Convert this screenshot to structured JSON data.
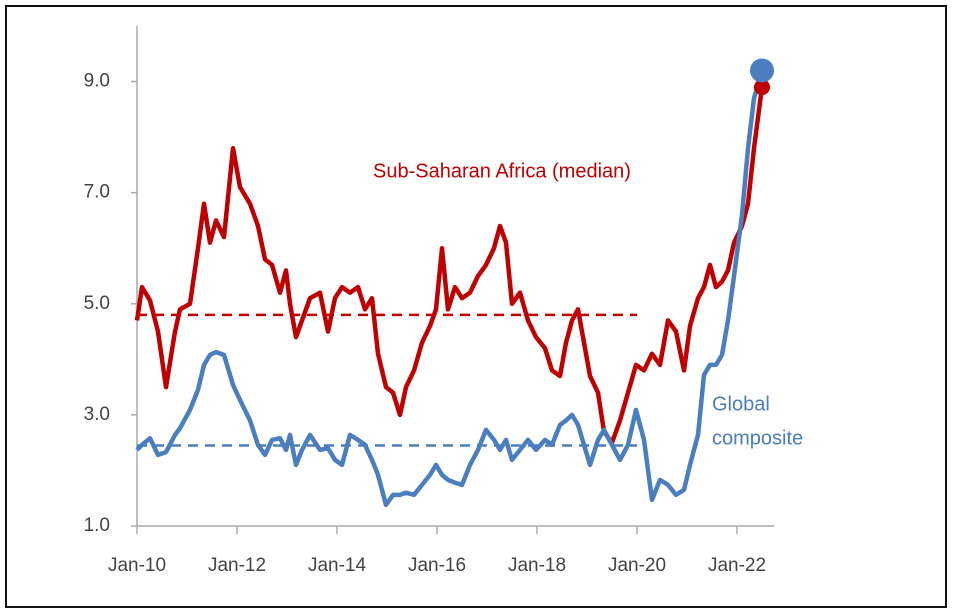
{
  "chart_data": {
    "type": "line",
    "xlim": [
      2010,
      2022.75
    ],
    "xticks": [
      {
        "value": 2010,
        "label": "Jan-10"
      },
      {
        "value": 2012,
        "label": "Jan-12"
      },
      {
        "value": 2014,
        "label": "Jan-14"
      },
      {
        "value": 2016,
        "label": "Jan-16"
      },
      {
        "value": 2018,
        "label": "Jan-18"
      },
      {
        "value": 2020,
        "label": "Jan-20"
      },
      {
        "value": 2022,
        "label": "Jan-22"
      }
    ],
    "ylim": [
      1,
      10
    ],
    "yticks": [
      {
        "value": 1,
        "label": "1.0"
      },
      {
        "value": 3,
        "label": "3.0"
      },
      {
        "value": 5,
        "label": "5.0"
      },
      {
        "value": 7,
        "label": "7.0"
      },
      {
        "value": 9,
        "label": "9.0"
      }
    ],
    "x": [
      2010.0,
      2010.1,
      2010.26,
      2010.42,
      2010.58,
      2010.76,
      2010.86,
      2011.06,
      2011.22,
      2011.34,
      2011.46,
      2011.58,
      2011.74,
      2011.92,
      2012.06,
      2012.26,
      2012.42,
      2012.56,
      2012.7,
      2012.86,
      2012.98,
      2013.06,
      2013.18,
      2013.3,
      2013.46,
      2013.66,
      2013.82,
      2013.96,
      2014.1,
      2014.26,
      2014.42,
      2014.56,
      2014.7,
      2014.82,
      2014.98,
      2015.12,
      2015.26,
      2015.38,
      2015.54,
      2015.7,
      2015.86,
      2015.98,
      2016.1,
      2016.22,
      2016.36,
      2016.5,
      2016.66,
      2016.82,
      2016.98,
      2017.14,
      2017.26,
      2017.38,
      2017.5,
      2017.66,
      2017.82,
      2017.98,
      2018.16,
      2018.3,
      2018.46,
      2018.58,
      2018.7,
      2018.82,
      2018.94,
      2019.06,
      2019.22,
      2019.34,
      2019.5,
      2019.66,
      2019.82,
      2019.98,
      2020.14,
      2020.3,
      2020.46,
      2020.62,
      2020.78,
      2020.94,
      2021.06,
      2021.22,
      2021.34,
      2021.46,
      2021.58,
      2021.7,
      2021.82,
      2021.94,
      2022.1,
      2022.22,
      2022.34,
      2022.5
    ],
    "series": [
      {
        "name": "Sub-Saharan Africa (median)",
        "color": "#c00000",
        "values": [
          4.7,
          5.3,
          5.06,
          4.5,
          3.5,
          4.5,
          4.9,
          5.0,
          6.0,
          6.8,
          6.1,
          6.5,
          6.2,
          7.8,
          7.1,
          6.8,
          6.4,
          5.8,
          5.7,
          5.2,
          5.6,
          5.0,
          4.4,
          4.7,
          5.1,
          5.2,
          4.5,
          5.1,
          5.3,
          5.2,
          5.3,
          4.9,
          5.1,
          4.1,
          3.5,
          3.4,
          3.0,
          3.5,
          3.8,
          4.3,
          4.6,
          4.9,
          6.0,
          4.9,
          5.3,
          5.1,
          5.2,
          5.5,
          5.7,
          6.0,
          6.4,
          6.1,
          5.0,
          5.2,
          4.7,
          4.4,
          4.2,
          3.8,
          3.7,
          4.3,
          4.7,
          4.9,
          4.3,
          3.7,
          3.4,
          2.7,
          2.5,
          2.9,
          3.4,
          3.9,
          3.8,
          4.1,
          3.9,
          4.7,
          4.5,
          3.8,
          4.6,
          5.1,
          5.3,
          5.7,
          5.3,
          5.4,
          5.6,
          6.1,
          6.4,
          6.8,
          7.8,
          8.9
        ],
        "mean": 4.8
      },
      {
        "name": "Global composite",
        "color": "#4a7ebf",
        "values": [
          2.37,
          2.46,
          2.58,
          2.28,
          2.33,
          2.64,
          2.76,
          3.09,
          3.45,
          3.9,
          4.08,
          4.13,
          4.08,
          3.54,
          3.27,
          2.9,
          2.46,
          2.28,
          2.55,
          2.58,
          2.37,
          2.64,
          2.1,
          2.37,
          2.64,
          2.37,
          2.4,
          2.19,
          2.1,
          2.64,
          2.55,
          2.46,
          2.19,
          1.92,
          1.38,
          1.56,
          1.56,
          1.6,
          1.56,
          1.74,
          1.92,
          2.1,
          1.92,
          1.83,
          1.78,
          1.74,
          2.1,
          2.37,
          2.73,
          2.55,
          2.37,
          2.55,
          2.19,
          2.37,
          2.55,
          2.37,
          2.55,
          2.46,
          2.82,
          2.9,
          3.0,
          2.82,
          2.46,
          2.1,
          2.55,
          2.73,
          2.46,
          2.19,
          2.46,
          3.09,
          2.55,
          1.47,
          1.83,
          1.74,
          1.56,
          1.65,
          2.1,
          2.64,
          3.72,
          3.9,
          3.9,
          4.08,
          4.7,
          5.5,
          6.6,
          7.8,
          8.7,
          9.2
        ],
        "mean": 2.45
      }
    ],
    "mean_xrange": [
      2010,
      2020
    ],
    "annotations": [
      {
        "lines": [
          "Sub-Saharan Africa (median)"
        ],
        "color": "#c00000"
      },
      {
        "lines": [
          "Global",
          "composite"
        ],
        "color": "#4a7ebf"
      }
    ]
  }
}
